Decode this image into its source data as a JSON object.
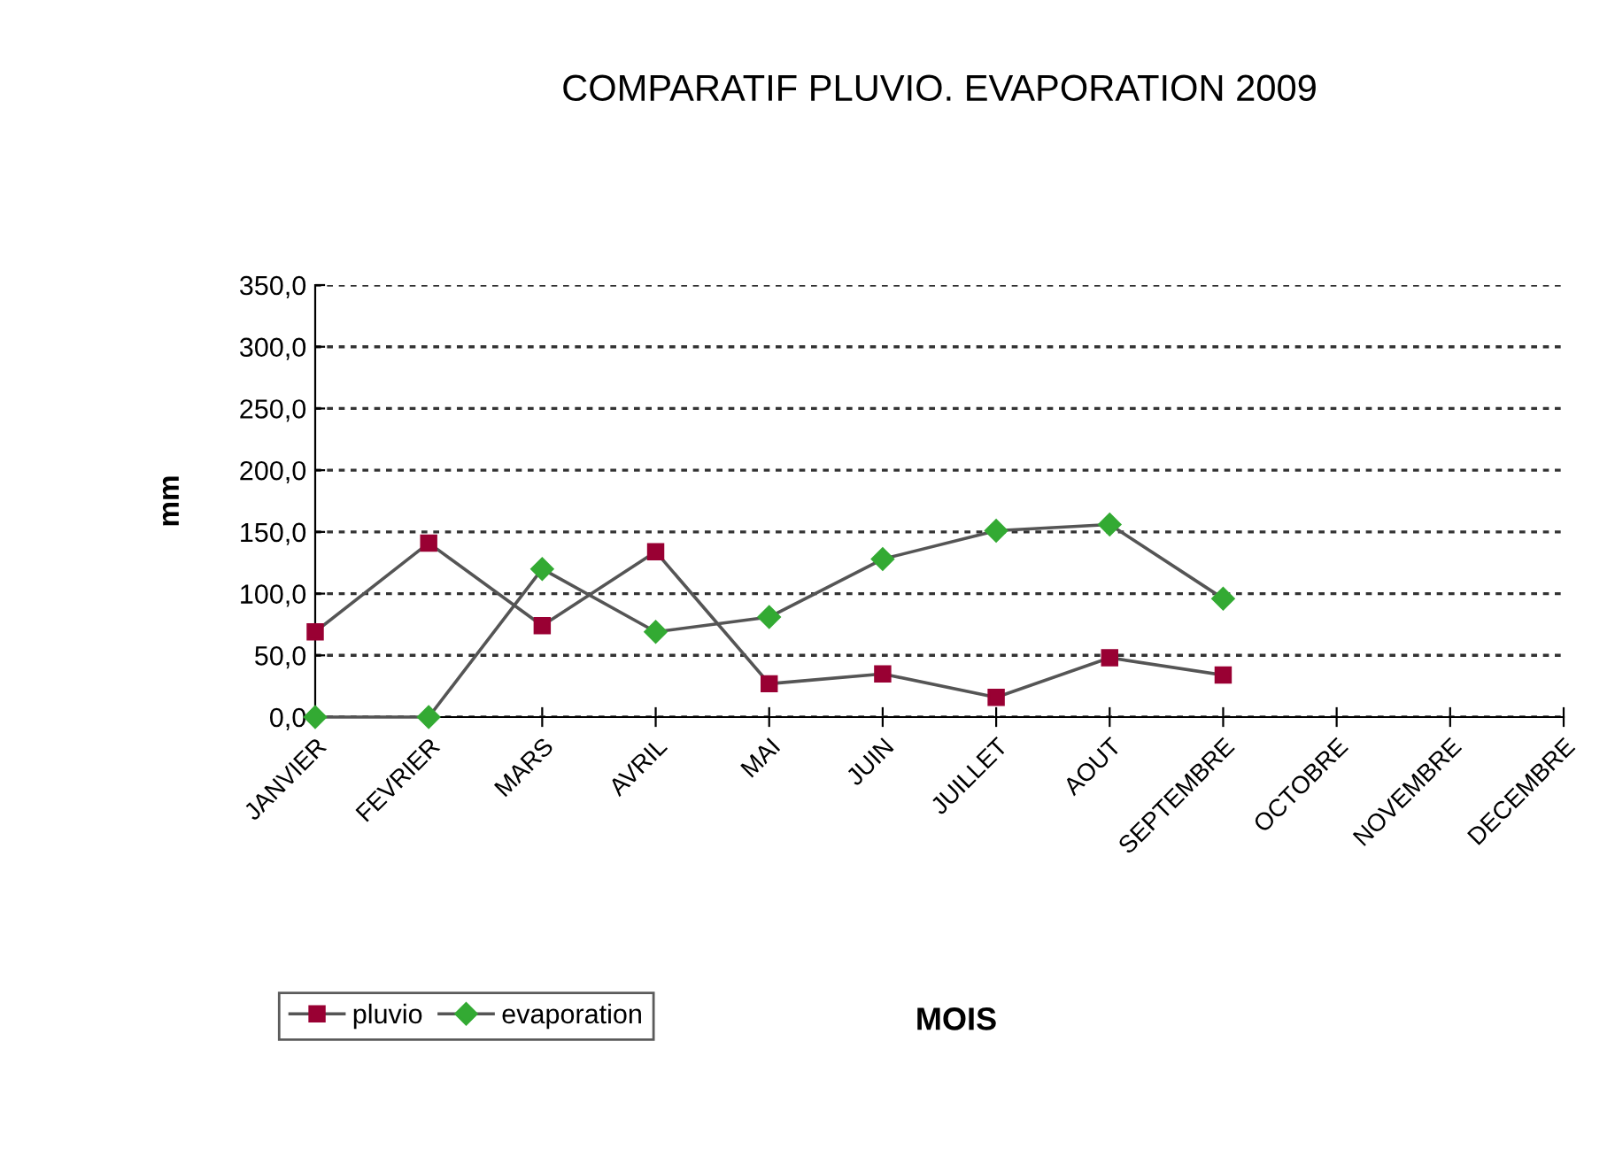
{
  "chart_data": {
    "type": "line",
    "title": "COMPARATIF PLUVIO. EVAPORATION 2009",
    "xlabel": "MOIS",
    "ylabel": "mm",
    "categories": [
      "JANVIER",
      "FEVRIER",
      "MARS",
      "AVRIL",
      "MAI",
      "JUIN",
      "JUILLET",
      "AOUT",
      "SEPTEMBRE",
      "OCTOBRE",
      "NOVEMBRE",
      "DECEMBRE"
    ],
    "series": [
      {
        "name": "pluvio",
        "color": "#990033",
        "marker": "square",
        "values": [
          69,
          141,
          74,
          134,
          27,
          35,
          16,
          48,
          34,
          null,
          null,
          null
        ]
      },
      {
        "name": "evaporation",
        "color": "#33aa33",
        "marker": "diamond",
        "values": [
          0,
          0,
          120,
          69,
          81,
          128,
          151,
          156,
          96,
          null,
          null,
          null
        ]
      }
    ],
    "ylim": [
      0,
      350
    ],
    "yticks": [
      {
        "value": 0,
        "label": "0,0"
      },
      {
        "value": 50,
        "label": "50,0"
      },
      {
        "value": 100,
        "label": "100,0"
      },
      {
        "value": 150,
        "label": "150,0"
      },
      {
        "value": 200,
        "label": "200,0"
      },
      {
        "value": 250,
        "label": "250,0"
      },
      {
        "value": 300,
        "label": "300,0"
      },
      {
        "value": 350,
        "label": "350,0"
      }
    ],
    "grid": "y",
    "legend": "bottom left",
    "line_style": "solid"
  }
}
